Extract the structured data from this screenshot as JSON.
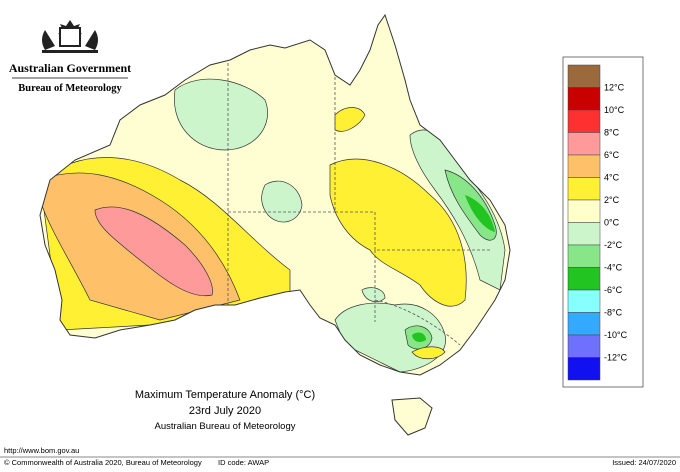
{
  "header": {
    "government": "Australian Government",
    "bureau": "Bureau of Meteorology"
  },
  "title": {
    "line1": "Maximum Temperature Anomaly (°C)",
    "line2": "23rd July 2020",
    "line3": "Australian Bureau of Meteorology"
  },
  "legend": {
    "colors": [
      "#9a6a3c",
      "#c80000",
      "#ff3030",
      "#ff9a9a",
      "#ffc06a",
      "#fff033",
      "#ffffcc",
      "#ccf5cc",
      "#88e688",
      "#22c422",
      "#88ffff",
      "#33aaff",
      "#7070ff",
      "#1010f0"
    ],
    "labels": [
      "12°C",
      "10°C",
      "8°C",
      "6°C",
      "4°C",
      "2°C",
      "0°C",
      "-2°C",
      "-4°C",
      "-6°C",
      "-8°C",
      "-10°C",
      "-12°C"
    ]
  },
  "footer": {
    "url": "http://www.bom.gov.au",
    "copyright": "© Commonwealth of Australia 2020, Bureau of Meteorology",
    "id_code": "ID code: AWAP",
    "issued": "Issued: 24/07/2020"
  }
}
